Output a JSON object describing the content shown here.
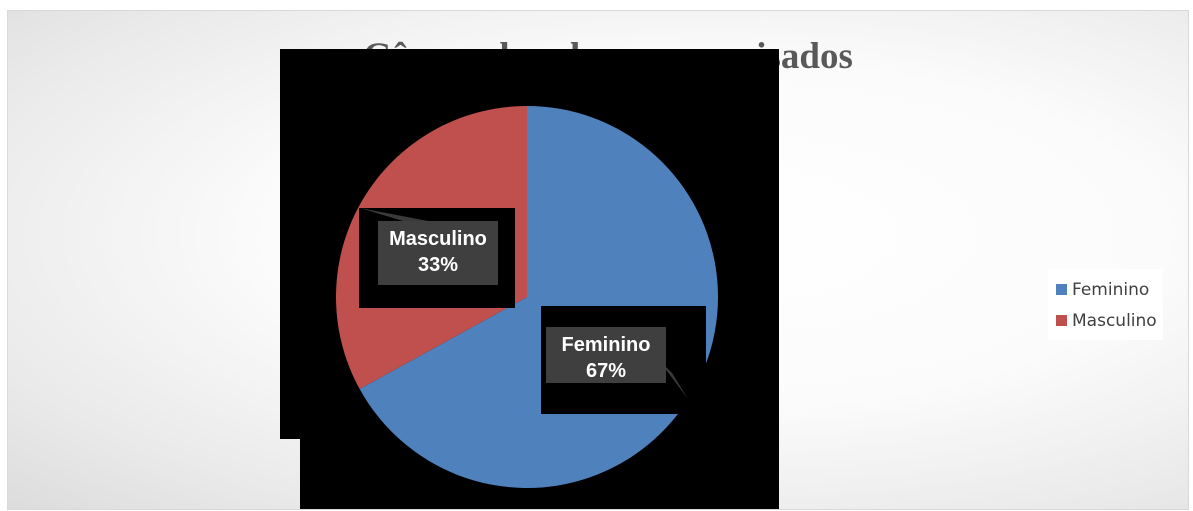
{
  "chart_data": {
    "type": "pie",
    "title": "Gênero dos alunos pesquisados",
    "categories": [
      "Feminino",
      "Masculino"
    ],
    "values": [
      67,
      33
    ],
    "data_labels": [
      {
        "name": "Feminino",
        "percent": "67%"
      },
      {
        "name": "Masculino",
        "percent": "33%"
      }
    ],
    "colors": [
      "#4f81bd",
      "#c0504d"
    ],
    "legend_position": "right"
  }
}
